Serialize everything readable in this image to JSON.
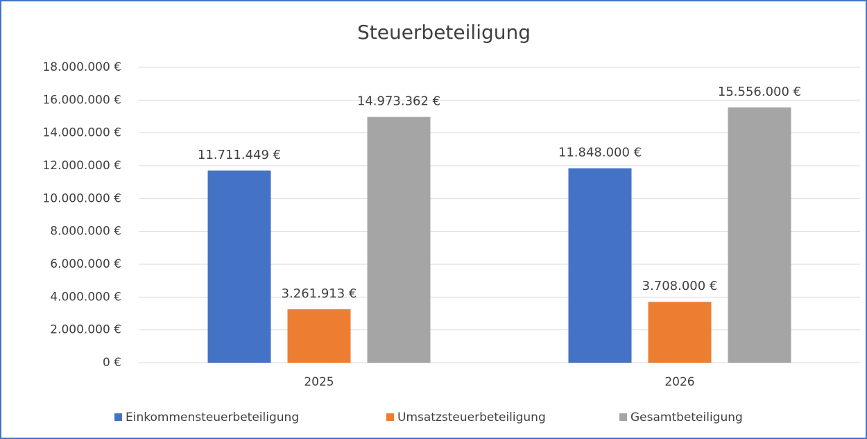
{
  "chart_data": {
    "type": "bar",
    "title": "Steuerbeteiligung",
    "categories": [
      "2025",
      "2026"
    ],
    "series": [
      {
        "name": "Einkommensteuerbeteiligung",
        "color": "#4472c4",
        "values": [
          11711449,
          11848000
        ],
        "value_labels": [
          "11.711.449 €",
          "11.848.000 €"
        ]
      },
      {
        "name": "Umsatzsteuerbeteiligung",
        "color": "#ed7d31",
        "values": [
          3261913,
          3708000
        ],
        "value_labels": [
          "3.261.913 €",
          "3.708.000 €"
        ]
      },
      {
        "name": "Gesamtbeteiligung",
        "color": "#a5a5a5",
        "values": [
          14973362,
          15556000
        ],
        "value_labels": [
          "14.973.362 €",
          "15.556.000 €"
        ]
      }
    ],
    "ylim": [
      0,
      18000000
    ],
    "yticks": [
      {
        "value": 0,
        "label": "0 €"
      },
      {
        "value": 2000000,
        "label": "2.000.000 €"
      },
      {
        "value": 4000000,
        "label": "4.000.000 €"
      },
      {
        "value": 6000000,
        "label": "6.000.000 €"
      },
      {
        "value": 8000000,
        "label": "8.000.000 €"
      },
      {
        "value": 10000000,
        "label": "10.000.000 €"
      },
      {
        "value": 12000000,
        "label": "12.000.000 €"
      },
      {
        "value": 14000000,
        "label": "14.000.000 €"
      },
      {
        "value": 16000000,
        "label": "16.000.000 €"
      },
      {
        "value": 18000000,
        "label": "18.000.000 €"
      }
    ],
    "grid": true,
    "legend": "bottom"
  }
}
